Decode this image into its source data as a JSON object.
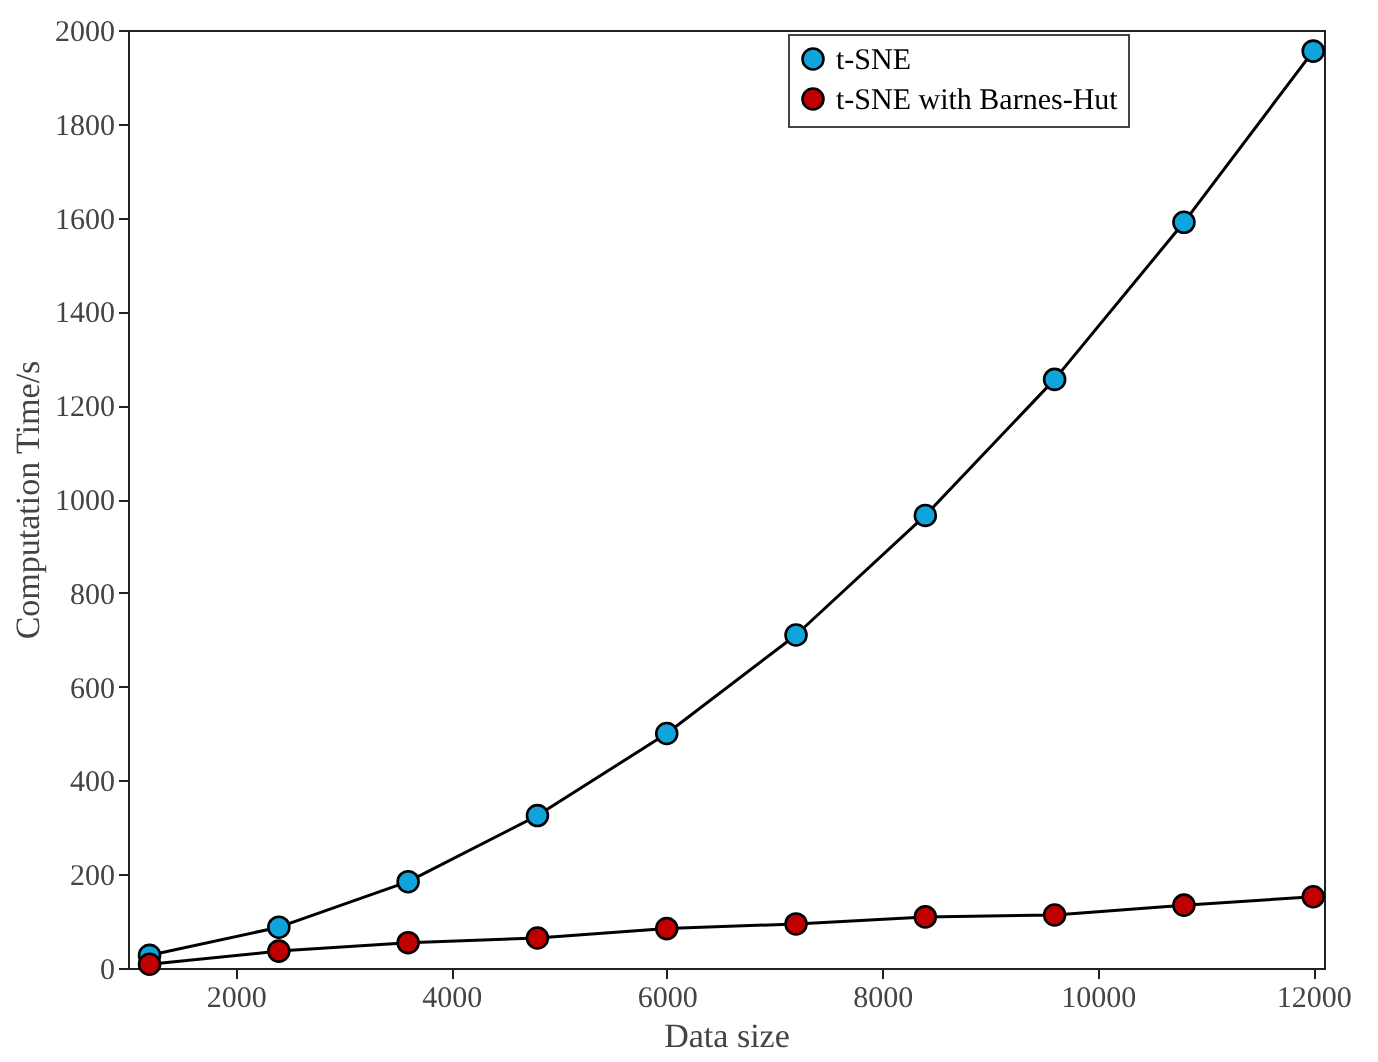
{
  "chart_data": {
    "type": "line",
    "xlabel": "Data size",
    "ylabel": "Computation Time/s",
    "x": [
      1200,
      2400,
      3600,
      4800,
      6000,
      7200,
      8400,
      9600,
      10800,
      12000
    ],
    "series": [
      {
        "name": "t-SNE",
        "color": "#0fa5dc",
        "values": [
          27,
          87,
          184,
          325,
          500,
          710,
          965,
          1255,
          1590,
          1955
        ]
      },
      {
        "name": "t-SNE with Barnes-Hut",
        "color": "#c00000",
        "values": [
          8,
          36,
          54,
          64,
          84,
          94,
          109,
          113,
          134,
          152
        ]
      }
    ],
    "xlim": [
      1000,
      12100
    ],
    "xticks": [
      2000,
      4000,
      6000,
      8000,
      10000,
      12000
    ],
    "ylim": [
      0,
      2000
    ],
    "yticks": [
      0,
      200,
      400,
      600,
      800,
      1000,
      1200,
      1400,
      1600,
      1800,
      2000
    ],
    "grid": false,
    "legend": "top right",
    "marker": "circle",
    "line_style": "solid"
  }
}
